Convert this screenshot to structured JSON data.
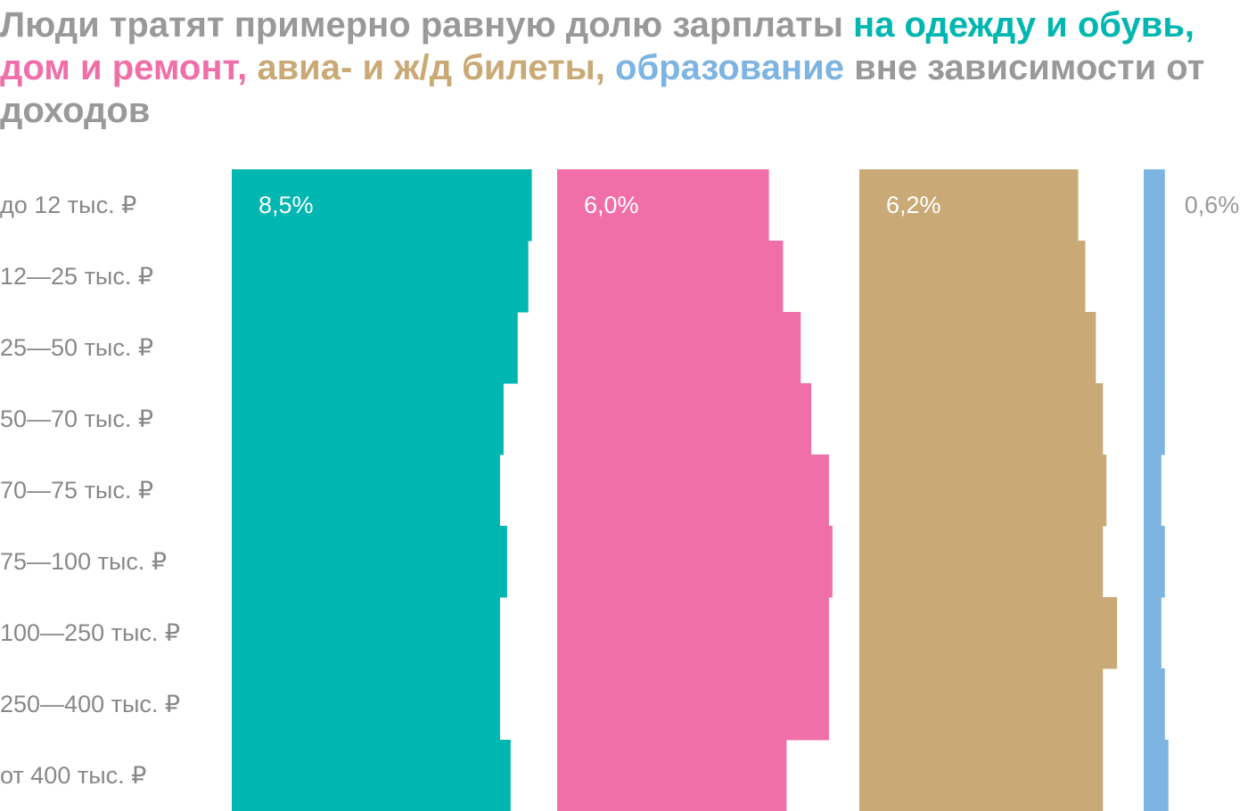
{
  "chart_data": {
    "type": "bar_columns",
    "title_parts": [
      {
        "text": "Люди тратят примерно равную долю зарплаты ",
        "color": "#999999"
      },
      {
        "text": "на одежду и обувь,",
        "color": "#00b6b0"
      },
      {
        "text": " ",
        "color": "#999999"
      },
      {
        "text": "дом и ремонт,",
        "color": "#f06fa9"
      },
      {
        "text": " ",
        "color": "#999999"
      },
      {
        "text": "авиа- и ж/д билеты,",
        "color": "#c9aa76"
      },
      {
        "text": " ",
        "color": "#999999"
      },
      {
        "text": "образование",
        "color": "#7db4e2"
      },
      {
        "text": " вне зависимости от доходов",
        "color": "#999999"
      }
    ],
    "categories": [
      "до 12 тыс. ₽",
      "12—25 тыс. ₽",
      "25—50 тыс. ₽",
      "50—70 тыс. ₽",
      "70—75 тыс. ₽",
      "75—100 тыс. ₽",
      "100—250 тыс. ₽",
      "250—400 тыс. ₽",
      "от 400 тыс. ₽"
    ],
    "series": [
      {
        "name": "на одежду и обувь",
        "color": "#00b6b0",
        "values": [
          8.5,
          8.4,
          8.1,
          7.7,
          7.6,
          7.8,
          7.6,
          7.6,
          7.9
        ],
        "value_labels": [
          "8,5%",
          null,
          null,
          null,
          null,
          null,
          null,
          null,
          null
        ]
      },
      {
        "name": "дом и ремонт",
        "color": "#f06fa9",
        "values": [
          6.0,
          6.4,
          6.9,
          7.2,
          7.7,
          7.8,
          7.7,
          7.7,
          6.5
        ],
        "value_labels": [
          "6,0%",
          null,
          null,
          null,
          null,
          null,
          null,
          null,
          null
        ]
      },
      {
        "name": "авиа- и ж/д билеты",
        "color": "#c9aa76",
        "values": [
          6.2,
          6.4,
          6.7,
          6.9,
          7.0,
          6.9,
          7.3,
          6.9,
          6.9
        ],
        "value_labels": [
          "6,2%",
          null,
          null,
          null,
          null,
          null,
          null,
          null,
          null
        ]
      },
      {
        "name": "образование",
        "color": "#7db4e2",
        "values": [
          0.6,
          0.6,
          0.6,
          0.6,
          0.5,
          0.6,
          0.5,
          0.6,
          0.7
        ],
        "value_labels": [
          "0,6%",
          null,
          null,
          null,
          null,
          null,
          null,
          null,
          null
        ]
      }
    ]
  }
}
